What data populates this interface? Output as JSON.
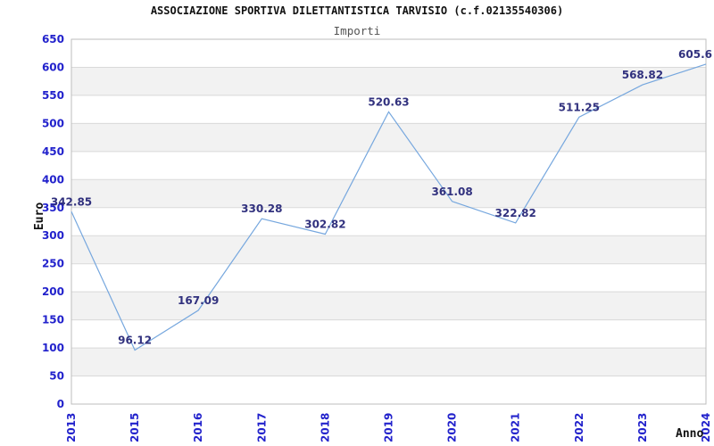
{
  "chart_data": {
    "type": "line",
    "title": "ASSOCIAZIONE SPORTIVA DILETTANTISTICA TARVISIO (c.f.02135540306)",
    "subtitle": "Importi",
    "xlabel": "Anno",
    "ylabel": "Euro",
    "categories": [
      "2013",
      "2015",
      "2016",
      "2017",
      "2018",
      "2019",
      "2020",
      "2021",
      "2022",
      "2023",
      "2024"
    ],
    "values": [
      342.85,
      96.12,
      167.09,
      330.28,
      302.82,
      520.63,
      361.08,
      322.82,
      511.25,
      568.82,
      605.6
    ],
    "ylim": [
      0,
      650
    ],
    "ytick_step": 50,
    "grid": true,
    "legend": "none",
    "point_labels_shown": true,
    "colors": {
      "line": "#76a7de",
      "tick_label": "#2222cc",
      "data_label": "#31317e",
      "band": "#f2f2f2",
      "gridline": "#d9d9d9",
      "border": "#bdbdbd",
      "title": "#111111",
      "subtitle": "#555555",
      "axis_label": "#111111"
    }
  }
}
